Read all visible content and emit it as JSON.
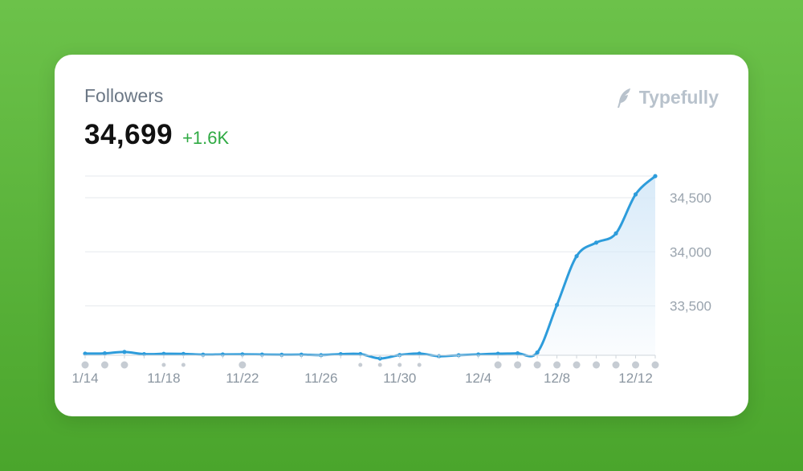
{
  "title": "Followers",
  "total": "34,699",
  "delta": "+1.6K",
  "brand": "Typefully",
  "colors": {
    "line": "#2d9cdb",
    "fill": "#d6e9f8",
    "delta": "#2faa43",
    "grid": "#e6e9ed"
  },
  "chart_data": {
    "type": "area",
    "ylim": [
      33000,
      34700
    ],
    "y_ticks": [
      33500,
      34000,
      34500
    ],
    "y_tick_labels": [
      "33,500",
      "34,000",
      "34,500"
    ],
    "x_tick_labels": [
      "1/14",
      "11/18",
      "11/22",
      "11/26",
      "11/30",
      "12/4",
      "12/8",
      "12/12"
    ],
    "x_tick_index": [
      0,
      4,
      8,
      12,
      16,
      20,
      24,
      28
    ],
    "values": [
      33060,
      33062,
      33075,
      33055,
      33058,
      33057,
      33050,
      33052,
      33053,
      33051,
      33049,
      33050,
      33046,
      33055,
      33056,
      33015,
      33047,
      33060,
      33036,
      33045,
      33052,
      33059,
      33062,
      33070,
      33510,
      33960,
      34085,
      34170,
      34530,
      34699
    ],
    "markers": [
      {
        "i": 0,
        "size": "large"
      },
      {
        "i": 1,
        "size": "large"
      },
      {
        "i": 2,
        "size": "large"
      },
      {
        "i": 4,
        "size": "small"
      },
      {
        "i": 5,
        "size": "small"
      },
      {
        "i": 8,
        "size": "large"
      },
      {
        "i": 14,
        "size": "small"
      },
      {
        "i": 15,
        "size": "small"
      },
      {
        "i": 16,
        "size": "small"
      },
      {
        "i": 17,
        "size": "small"
      },
      {
        "i": 21,
        "size": "large"
      },
      {
        "i": 22,
        "size": "large"
      },
      {
        "i": 23,
        "size": "large"
      },
      {
        "i": 24,
        "size": "large"
      },
      {
        "i": 25,
        "size": "large"
      },
      {
        "i": 26,
        "size": "large"
      },
      {
        "i": 27,
        "size": "large"
      },
      {
        "i": 28,
        "size": "large"
      },
      {
        "i": 29,
        "size": "large"
      }
    ]
  }
}
